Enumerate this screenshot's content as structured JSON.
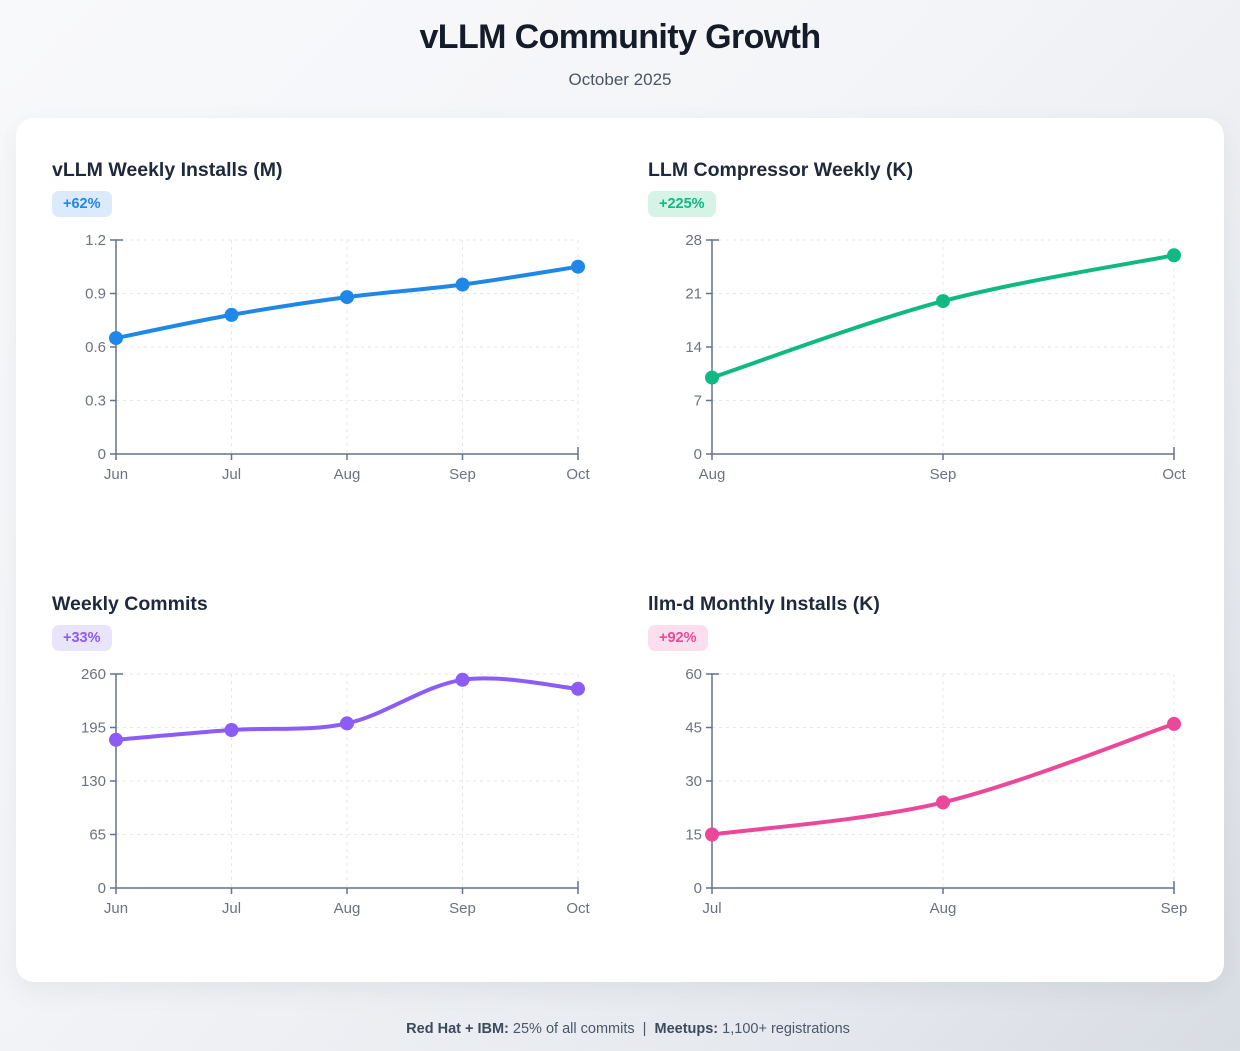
{
  "header": {
    "title": "vLLM Community Growth",
    "subtitle": "October 2025"
  },
  "chart_data": [
    {
      "type": "line",
      "title": "vLLM Weekly Installs (M)",
      "badge": "+62%",
      "categories": [
        "Jun",
        "Jul",
        "Aug",
        "Sep",
        "Oct"
      ],
      "values": [
        0.65,
        0.78,
        0.88,
        0.95,
        1.05
      ],
      "ylim": [
        0,
        1.2
      ],
      "ytick_values": [
        0,
        0.3,
        0.6,
        0.9,
        1.2
      ],
      "ytick_labels": [
        "0",
        "0.3",
        "0.6",
        "0.9",
        "1.2"
      ],
      "xlabel": "",
      "ylabel": "",
      "grid": true,
      "legend": false,
      "line_color": "#1e87e8",
      "badge_color": "#1e87e8",
      "badge_bg": "#dbeafc"
    },
    {
      "type": "line",
      "title": "LLM Compressor Weekly (K)",
      "badge": "+225%",
      "categories": [
        "Aug",
        "Sep",
        "Oct"
      ],
      "values": [
        10,
        20,
        26
      ],
      "ylim": [
        0,
        28
      ],
      "ytick_values": [
        0,
        7,
        14,
        21,
        28
      ],
      "ytick_labels": [
        "0",
        "7",
        "14",
        "21",
        "28"
      ],
      "xlabel": "",
      "ylabel": "",
      "grid": true,
      "legend": false,
      "line_color": "#10b981",
      "badge_color": "#10b981",
      "badge_bg": "#d5f3e6"
    },
    {
      "type": "line",
      "title": "Weekly Commits",
      "badge": "+33%",
      "categories": [
        "Jun",
        "Jul",
        "Aug",
        "Sep",
        "Oct"
      ],
      "values": [
        180,
        192,
        200,
        253,
        242
      ],
      "ylim": [
        0,
        260
      ],
      "ytick_values": [
        0,
        65,
        130,
        195,
        260
      ],
      "ytick_labels": [
        "0",
        "65",
        "130",
        "195",
        "260"
      ],
      "xlabel": "",
      "ylabel": "",
      "grid": true,
      "legend": false,
      "line_color": "#8b5cf6",
      "badge_color": "#8b5cf6",
      "badge_bg": "#eae4fb"
    },
    {
      "type": "line",
      "title": "llm-d Monthly Installs (K)",
      "badge": "+92%",
      "categories": [
        "Jul",
        "Aug",
        "Sep"
      ],
      "values": [
        15,
        24,
        46
      ],
      "ylim": [
        0,
        60
      ],
      "ytick_values": [
        0,
        15,
        30,
        45,
        60
      ],
      "ytick_labels": [
        "0",
        "15",
        "30",
        "45",
        "60"
      ],
      "xlabel": "",
      "ylabel": "",
      "grid": true,
      "legend": false,
      "line_color": "#ec4899",
      "badge_color": "#ec4899",
      "badge_bg": "#fcdfee"
    }
  ],
  "footer": {
    "segments": [
      {
        "text": "Red Hat + IBM:"
      },
      {
        "text": " 25% of all commits  |  "
      },
      {
        "text": "Meetups:"
      },
      {
        "text": " 1,100+ registrations"
      }
    ]
  }
}
